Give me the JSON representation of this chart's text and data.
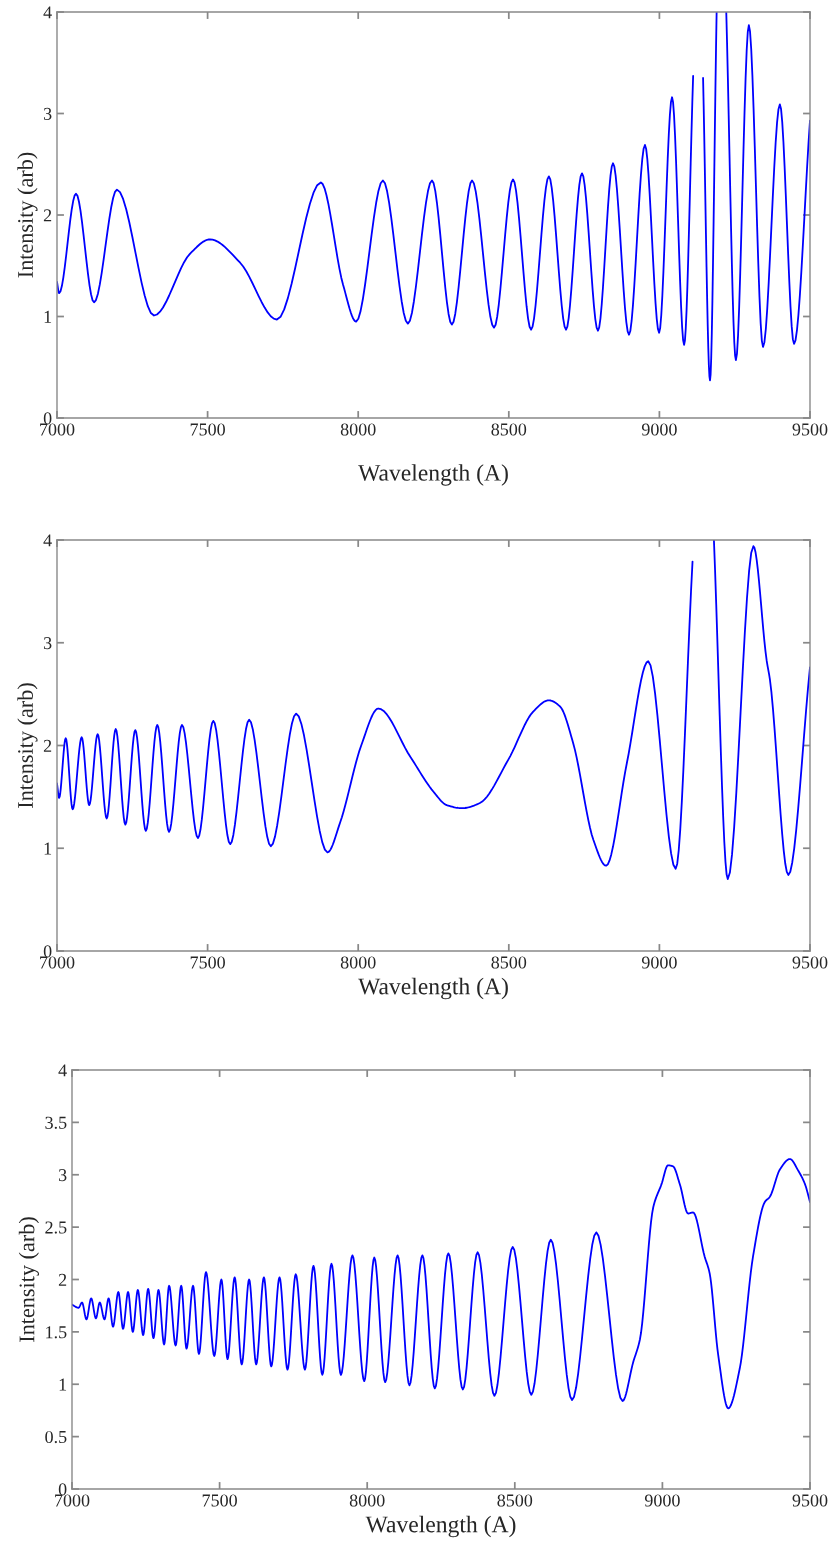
{
  "chart_data": [
    {
      "type": "line",
      "xlabel": "Wavelength (A)",
      "ylabel": "Intensity (arb)",
      "xlim": [
        7000,
        9500
      ],
      "ylim": [
        0,
        4
      ],
      "xticks": [
        7000,
        7500,
        8000,
        8500,
        9000,
        9500
      ],
      "yticks": [
        0,
        1,
        2,
        3,
        4
      ],
      "grid": false,
      "line_style": "solid",
      "marker": "none",
      "x": [
        7000,
        7007,
        7063,
        7123,
        7199,
        7322,
        7442,
        7508,
        7608,
        7730,
        7876,
        7950,
        7993,
        8082,
        8165,
        8245,
        8311,
        8378,
        8451,
        8514,
        8574,
        8633,
        8690,
        8743,
        8796,
        8846,
        8899,
        8952,
        8999,
        9042,
        9082,
        9112,
        9128,
        9145,
        9168,
        9190,
        9205,
        9222,
        9254,
        9297,
        9344,
        9400,
        9447,
        9500
      ],
      "series": [
        {
          "color": "#0000ff",
          "values": [
            1.34,
            1.23,
            2.21,
            1.14,
            2.25,
            1.01,
            1.62,
            1.76,
            1.53,
            0.97,
            2.32,
            1.31,
            0.95,
            2.34,
            0.93,
            2.34,
            0.92,
            2.34,
            0.89,
            2.35,
            0.87,
            2.38,
            0.87,
            2.41,
            0.86,
            2.51,
            0.82,
            2.69,
            0.84,
            3.16,
            0.72,
            3.37,
            null,
            3.35,
            0.37,
            4.0,
            null,
            4.0,
            0.57,
            3.87,
            0.7,
            3.09,
            0.73,
            2.93
          ]
        }
      ]
    },
    {
      "type": "line",
      "xlabel": "Wavelength (A)",
      "ylabel": "Intensity (arb)",
      "xlim": [
        7000,
        9500
      ],
      "ylim": [
        0,
        4
      ],
      "xticks": [
        7000,
        7500,
        8000,
        8500,
        9000,
        9500
      ],
      "yticks": [
        0,
        1,
        2,
        3,
        4
      ],
      "grid": false,
      "line_style": "solid",
      "marker": "none",
      "x": [
        7000,
        7007,
        7029,
        7052,
        7082,
        7107,
        7135,
        7165,
        7195,
        7227,
        7260,
        7295,
        7333,
        7372,
        7415,
        7468,
        7519,
        7575,
        7638,
        7710,
        7794,
        7898,
        7940,
        8010,
        8067,
        8173,
        8250,
        8294,
        8345,
        8404,
        8498,
        8581,
        8633,
        8670,
        8714,
        8781,
        8823,
        8892,
        8963,
        9054,
        9110,
        9145,
        9181,
        9227,
        9312,
        9356,
        9367,
        9428,
        9500
      ],
      "series": [
        {
          "color": "#0000ff",
          "values": [
            1.63,
            1.49,
            2.07,
            1.38,
            2.08,
            1.42,
            2.11,
            1.29,
            2.16,
            1.23,
            2.15,
            1.17,
            2.2,
            1.16,
            2.2,
            1.1,
            2.24,
            1.04,
            2.25,
            1.02,
            2.31,
            0.96,
            1.25,
            2.0,
            2.36,
            1.89,
            1.55,
            1.42,
            1.39,
            1.44,
            1.86,
            2.33,
            2.44,
            2.38,
            2.02,
            1.08,
            0.83,
            1.83,
            2.82,
            0.8,
            3.79,
            null,
            4.0,
            0.7,
            3.94,
            2.83,
            2.64,
            0.74,
            2.76
          ]
        }
      ]
    },
    {
      "type": "line",
      "xlabel": "Wavelength (A)",
      "ylabel": "Intensity (arb)",
      "xlim": [
        7000,
        9500
      ],
      "ylim": [
        0,
        4
      ],
      "xticks": [
        7000,
        7500,
        8000,
        8500,
        9000,
        9500
      ],
      "yticks": [
        0,
        0.5,
        1,
        1.5,
        2,
        2.5,
        3,
        3.5,
        4
      ],
      "grid": false,
      "line_style": "solid",
      "marker": "none",
      "x": [
        7000,
        7022,
        7034,
        7049,
        7065,
        7081,
        7094,
        7110,
        7124,
        7139,
        7157,
        7173,
        7190,
        7206,
        7223,
        7241,
        7258,
        7276,
        7293,
        7312,
        7329,
        7351,
        7370,
        7388,
        7410,
        7430,
        7454,
        7482,
        7506,
        7527,
        7551,
        7575,
        7600,
        7624,
        7650,
        7675,
        7703,
        7730,
        7758,
        7789,
        7818,
        7848,
        7879,
        7911,
        7950,
        7990,
        8024,
        8061,
        8103,
        8143,
        8187,
        8229,
        8275,
        8324,
        8374,
        8431,
        8493,
        8556,
        8622,
        8694,
        8776,
        8865,
        8901,
        8924,
        8969,
        8997,
        9019,
        9036,
        9059,
        9087,
        9104,
        9143,
        9160,
        9189,
        9223,
        9262,
        9307,
        9347,
        9364,
        9398,
        9432,
        9460,
        9483,
        9500
      ],
      "series": [
        {
          "color": "#0000ff",
          "values": [
            1.76,
            1.73,
            1.78,
            1.62,
            1.82,
            1.63,
            1.78,
            1.62,
            1.82,
            1.55,
            1.88,
            1.53,
            1.88,
            1.5,
            1.9,
            1.47,
            1.91,
            1.44,
            1.9,
            1.38,
            1.94,
            1.37,
            1.94,
            1.34,
            1.94,
            1.29,
            2.07,
            1.27,
            2.0,
            1.24,
            2.02,
            1.19,
            2.0,
            1.19,
            2.02,
            1.17,
            2.02,
            1.14,
            2.05,
            1.14,
            2.13,
            1.09,
            2.15,
            1.09,
            2.23,
            1.03,
            2.21,
            1.02,
            2.23,
            0.99,
            2.23,
            0.96,
            2.25,
            0.95,
            2.26,
            0.89,
            2.31,
            0.9,
            2.38,
            0.85,
            2.45,
            0.84,
            1.21,
            1.43,
            2.69,
            2.91,
            3.09,
            3.08,
            2.91,
            2.63,
            2.64,
            2.22,
            2.06,
            1.28,
            0.77,
            1.15,
            2.22,
            2.74,
            2.79,
            3.05,
            3.15,
            3.04,
            2.91,
            2.74
          ]
        }
      ]
    }
  ]
}
